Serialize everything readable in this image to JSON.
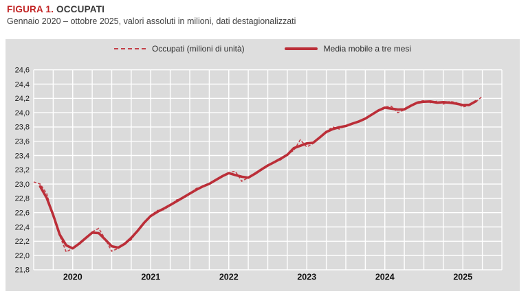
{
  "figure": {
    "label": "FIGURA 1.",
    "title": "OCCUPATI",
    "subtitle": "Gennaio 2020 – ottobre 2025, valori assoluti in milioni, dati destagionalizzati"
  },
  "legend": {
    "dashed_label": "Occupati (milioni di unità)",
    "solid_label": "Media mobile a tre mesi"
  },
  "colors": {
    "title_red": "#c22424",
    "line_solid": "#bb2e38",
    "line_dashed": "#c43f48",
    "panel_bg": "#dedede",
    "plot_bg": "#dbdbdb",
    "grid": "#ffffff",
    "tick_text": "#1a1a1a"
  },
  "chart_data": {
    "type": "line",
    "title": "OCCUPATI",
    "subtitle": "Gennaio 2020 – ottobre 2025, valori assoluti in milioni, dati destagionalizzati",
    "x_start": "2020-01",
    "x_end": "2025-10",
    "x_axis_extends_to": "2026-01",
    "ylim": [
      21.8,
      24.6
    ],
    "y_step": 0.2,
    "grid": "on",
    "gridlines_vertical": "quarterly",
    "legend_position": "top-center",
    "y_tick_labels": [
      "24,6",
      "24,4",
      "24,2",
      "24,0",
      "23,8",
      "23,6",
      "23,4",
      "23,2",
      "23,0",
      "22,8",
      "22,6",
      "22,4",
      "22,2",
      "22,0",
      "21,8"
    ],
    "x_tick_labels": [
      "2020",
      "2021",
      "2022",
      "2023",
      "2024",
      "2025"
    ],
    "series": [
      {
        "name": "Occupati (milioni di unità)",
        "style": "dashed",
        "unit": "milioni",
        "values": [
          23.03,
          23.0,
          22.87,
          22.55,
          22.28,
          22.05,
          22.1,
          22.15,
          22.25,
          22.33,
          22.38,
          22.23,
          22.06,
          22.1,
          22.17,
          22.22,
          22.35,
          22.47,
          22.56,
          22.63,
          22.64,
          22.7,
          22.78,
          22.8,
          22.86,
          22.94,
          22.96,
          23.0,
          23.05,
          23.12,
          23.16,
          23.18,
          23.04,
          23.09,
          23.14,
          23.2,
          23.27,
          23.31,
          23.34,
          23.42,
          23.47,
          23.62,
          23.52,
          23.57,
          23.65,
          23.74,
          23.8,
          23.77,
          23.82,
          23.85,
          23.87,
          23.91,
          23.97,
          24.04,
          24.08,
          24.09,
          24.0,
          24.04,
          24.1,
          24.15,
          24.17,
          24.14,
          24.16,
          24.12,
          24.16,
          24.14,
          24.08,
          24.1,
          24.15,
          24.23
        ]
      },
      {
        "name": "Media mobile a tre mesi",
        "style": "solid",
        "derived": "centered 3-month moving average of first series"
      }
    ]
  }
}
